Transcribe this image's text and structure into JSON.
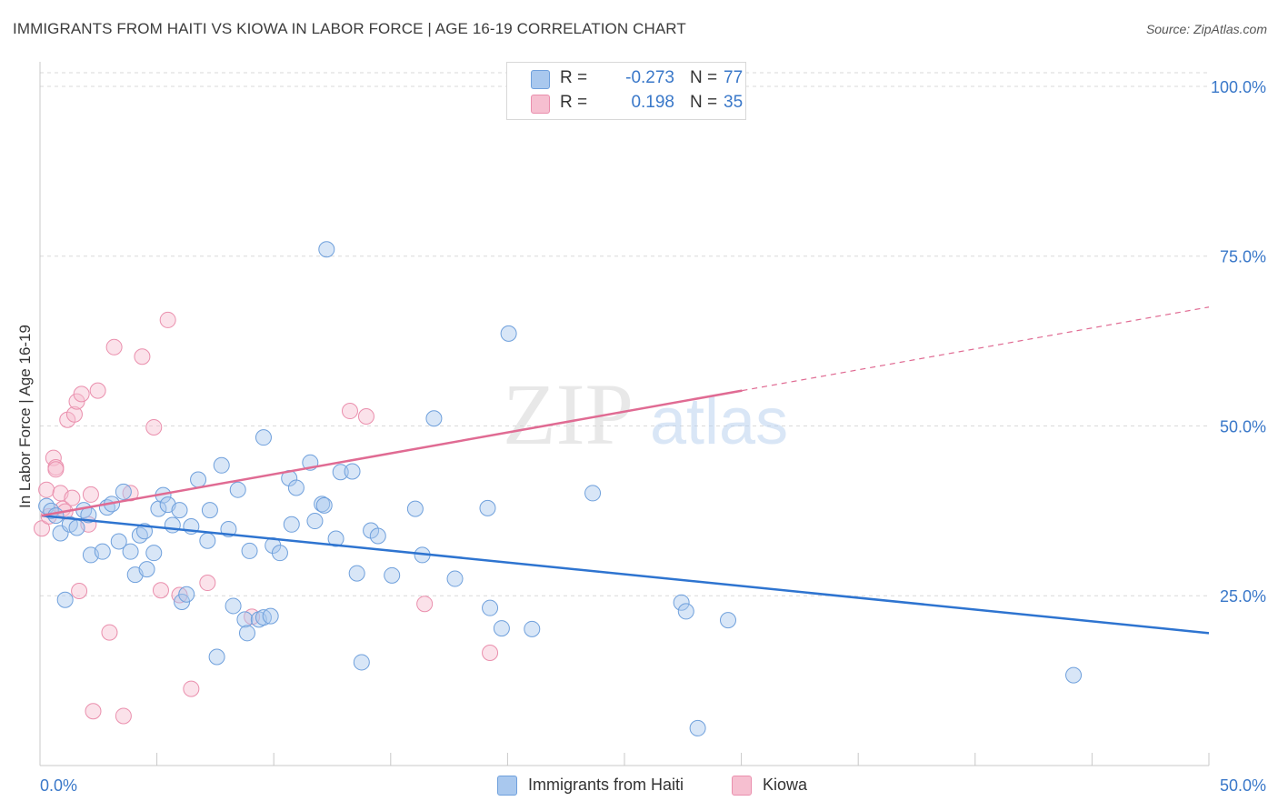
{
  "title": "IMMIGRANTS FROM HAITI VS KIOWA IN LABOR FORCE | AGE 16-19 CORRELATION CHART",
  "source": "Source: ZipAtlas.com",
  "watermark": {
    "zip": "ZIP",
    "atlas": "atlas"
  },
  "legend": {
    "rows": [
      {
        "r_label": "R =",
        "r_value": "-0.273",
        "n_label": "N =",
        "n_value": "77"
      },
      {
        "r_label": "R =",
        "r_value": "0.198",
        "n_label": "N =",
        "n_value": "35"
      }
    ]
  },
  "colors": {
    "haiti_fill": "#a9c8ee",
    "haiti_stroke": "#6fa0dc",
    "haiti_line": "#2e74d0",
    "kiowa_fill": "#f6bfd0",
    "kiowa_stroke": "#ea8fad",
    "kiowa_line": "#e06b93",
    "axis_text": "#3a78c9",
    "grid": "#d9d9d9"
  },
  "chart_data": {
    "type": "scatter",
    "title": "IMMIGRANTS FROM HAITI VS KIOWA IN LABOR FORCE | AGE 16-19 CORRELATION CHART",
    "xlabel": "",
    "ylabel": "In Labor Force | Age 16-19",
    "xlim": [
      0,
      50
    ],
    "ylim": [
      0,
      102
    ],
    "x_tick_labels": [
      "0.0%",
      "50.0%"
    ],
    "y_ticks": [
      25,
      50,
      75,
      100
    ],
    "y_tick_labels": [
      "25.0%",
      "50.0%",
      "75.0%",
      "100.0%"
    ],
    "grid": true,
    "legend_position": "top-center",
    "series": [
      {
        "name": "Immigrants from Haiti",
        "R": -0.273,
        "N": 77,
        "trend": {
          "x": [
            0,
            50
          ],
          "y": [
            36.8,
            19.5
          ]
        },
        "points": [
          [
            0.2,
            38.2
          ],
          [
            0.4,
            37.5
          ],
          [
            0.6,
            36.8
          ],
          [
            0.8,
            34.2
          ],
          [
            1.0,
            24.4
          ],
          [
            1.2,
            35.5
          ],
          [
            1.5,
            35.0
          ],
          [
            1.8,
            37.6
          ],
          [
            2.0,
            36.9
          ],
          [
            2.1,
            31.0
          ],
          [
            2.6,
            31.5
          ],
          [
            2.8,
            38.0
          ],
          [
            3.0,
            38.5
          ],
          [
            3.3,
            33.0
          ],
          [
            3.5,
            40.3
          ],
          [
            3.8,
            31.5
          ],
          [
            4.0,
            28.1
          ],
          [
            4.2,
            33.9
          ],
          [
            4.4,
            34.5
          ],
          [
            4.5,
            28.9
          ],
          [
            4.8,
            31.3
          ],
          [
            5.0,
            37.8
          ],
          [
            5.2,
            39.8
          ],
          [
            5.4,
            38.4
          ],
          [
            5.6,
            35.4
          ],
          [
            5.9,
            37.6
          ],
          [
            6.0,
            24.1
          ],
          [
            6.2,
            25.2
          ],
          [
            6.4,
            35.2
          ],
          [
            6.7,
            42.1
          ],
          [
            7.1,
            33.1
          ],
          [
            7.2,
            37.6
          ],
          [
            7.5,
            16.0
          ],
          [
            7.7,
            44.2
          ],
          [
            8.0,
            34.8
          ],
          [
            8.2,
            23.5
          ],
          [
            8.4,
            40.6
          ],
          [
            8.7,
            21.5
          ],
          [
            8.8,
            19.5
          ],
          [
            8.9,
            31.6
          ],
          [
            9.3,
            21.5
          ],
          [
            9.5,
            21.8
          ],
          [
            9.5,
            48.3
          ],
          [
            9.8,
            22.0
          ],
          [
            9.9,
            32.4
          ],
          [
            10.2,
            31.3
          ],
          [
            10.6,
            42.3
          ],
          [
            10.7,
            35.5
          ],
          [
            10.9,
            40.9
          ],
          [
            11.5,
            44.6
          ],
          [
            11.7,
            36.0
          ],
          [
            12.0,
            38.5
          ],
          [
            12.1,
            38.3
          ],
          [
            12.2,
            76.0
          ],
          [
            12.6,
            33.4
          ],
          [
            12.8,
            43.2
          ],
          [
            13.3,
            43.3
          ],
          [
            13.5,
            28.3
          ],
          [
            13.7,
            15.2
          ],
          [
            14.1,
            34.6
          ],
          [
            14.4,
            33.8
          ],
          [
            15.0,
            28.0
          ],
          [
            16.0,
            37.8
          ],
          [
            16.3,
            31.0
          ],
          [
            16.8,
            51.1
          ],
          [
            17.7,
            27.5
          ],
          [
            19.1,
            37.9
          ],
          [
            19.2,
            23.2
          ],
          [
            19.7,
            20.2
          ],
          [
            20.0,
            63.6
          ],
          [
            21.0,
            20.1
          ],
          [
            23.6,
            40.1
          ],
          [
            27.4,
            24.0
          ],
          [
            27.6,
            22.7
          ],
          [
            28.1,
            5.5
          ],
          [
            29.4,
            21.4
          ],
          [
            44.2,
            13.3
          ]
        ]
      },
      {
        "name": "Kiowa",
        "R": 0.198,
        "N": 35,
        "trend": {
          "x": [
            0,
            30
          ],
          "y": [
            36.8,
            55.2
          ]
        },
        "trend_dashed": {
          "x": [
            30,
            50
          ],
          "y": [
            55.2,
            67.5
          ]
        },
        "points": [
          [
            0.0,
            34.9
          ],
          [
            0.2,
            40.6
          ],
          [
            0.3,
            36.7
          ],
          [
            0.5,
            45.3
          ],
          [
            0.6,
            43.9
          ],
          [
            0.6,
            43.6
          ],
          [
            0.8,
            40.1
          ],
          [
            0.9,
            37.8
          ],
          [
            1.0,
            37.4
          ],
          [
            1.1,
            50.9
          ],
          [
            1.3,
            39.4
          ],
          [
            1.4,
            51.7
          ],
          [
            1.5,
            53.6
          ],
          [
            1.6,
            25.7
          ],
          [
            1.7,
            54.7
          ],
          [
            2.0,
            35.5
          ],
          [
            2.1,
            39.9
          ],
          [
            2.2,
            8.0
          ],
          [
            2.4,
            55.2
          ],
          [
            2.9,
            19.6
          ],
          [
            3.1,
            61.6
          ],
          [
            3.5,
            7.3
          ],
          [
            3.8,
            40.1
          ],
          [
            4.3,
            60.2
          ],
          [
            4.8,
            49.8
          ],
          [
            5.1,
            25.8
          ],
          [
            5.4,
            65.6
          ],
          [
            5.9,
            25.1
          ],
          [
            6.4,
            11.3
          ],
          [
            7.1,
            26.9
          ],
          [
            9.0,
            21.9
          ],
          [
            13.2,
            52.2
          ],
          [
            13.9,
            51.4
          ],
          [
            16.4,
            23.8
          ],
          [
            19.2,
            16.6
          ]
        ]
      }
    ]
  }
}
